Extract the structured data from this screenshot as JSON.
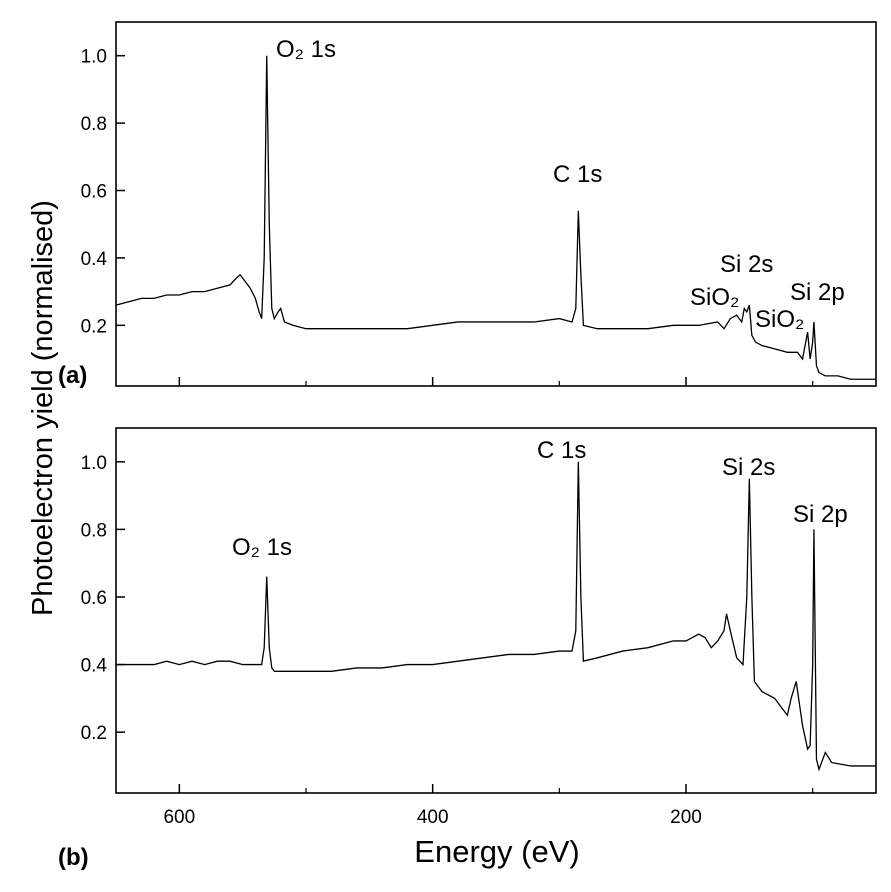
{
  "chart_data": [
    {
      "type": "line",
      "panel_label": "(a)",
      "ylabel": "Photoelectron yield (normalised)",
      "x": [
        650,
        640,
        630,
        620,
        610,
        600,
        590,
        580,
        570,
        560,
        555,
        552,
        548,
        544,
        540,
        537,
        535,
        533,
        531,
        529,
        527,
        525,
        522,
        520,
        517,
        510,
        500,
        480,
        460,
        440,
        420,
        400,
        380,
        360,
        340,
        320,
        300,
        290,
        287,
        285,
        283,
        281,
        270,
        250,
        230,
        210,
        190,
        175,
        170,
        165,
        160,
        156,
        154,
        152,
        150,
        148,
        145,
        140,
        130,
        120,
        112,
        108,
        104,
        102,
        100,
        99,
        97,
        95,
        90,
        80,
        70,
        60,
        50
      ],
      "series": [
        {
          "color": "#000000",
          "values": [
            0.26,
            0.27,
            0.28,
            0.28,
            0.29,
            0.29,
            0.3,
            0.3,
            0.31,
            0.32,
            0.34,
            0.35,
            0.33,
            0.31,
            0.28,
            0.24,
            0.22,
            0.4,
            1.0,
            0.5,
            0.25,
            0.22,
            0.24,
            0.25,
            0.21,
            0.2,
            0.19,
            0.19,
            0.19,
            0.19,
            0.19,
            0.2,
            0.21,
            0.21,
            0.21,
            0.21,
            0.22,
            0.21,
            0.25,
            0.54,
            0.35,
            0.2,
            0.19,
            0.19,
            0.19,
            0.2,
            0.2,
            0.21,
            0.19,
            0.22,
            0.23,
            0.21,
            0.25,
            0.24,
            0.26,
            0.17,
            0.15,
            0.14,
            0.13,
            0.12,
            0.12,
            0.1,
            0.18,
            0.1,
            0.15,
            0.21,
            0.08,
            0.06,
            0.05,
            0.05,
            0.04,
            0.04,
            0.04
          ]
        }
      ],
      "xlim": [
        650,
        50
      ],
      "xticks": [
        600,
        400,
        200
      ],
      "xminorticks": [
        500,
        300,
        100
      ],
      "show_xtick_labels": false,
      "ylim": [
        0.02,
        1.1
      ],
      "yticks": [
        0.2,
        0.4,
        0.6,
        0.8,
        {
          "value": 1,
          "label": "1.0"
        }
      ],
      "annotations": [
        "O₂ 1s",
        "C 1s",
        "Si 2s",
        "SiO₂",
        "SiO₂",
        "Si 2p"
      ]
    },
    {
      "type": "line",
      "panel_label": "(b)",
      "xlabel": "Energy (eV)",
      "x": [
        650,
        640,
        630,
        620,
        610,
        600,
        590,
        580,
        570,
        560,
        550,
        540,
        535,
        533,
        531,
        529,
        527,
        525,
        520,
        510,
        500,
        480,
        460,
        440,
        420,
        400,
        380,
        360,
        340,
        320,
        300,
        290,
        287,
        285,
        283,
        281,
        270,
        250,
        230,
        210,
        200,
        190,
        185,
        180,
        175,
        170,
        168,
        165,
        160,
        155,
        152,
        150,
        148,
        146,
        140,
        130,
        120,
        117,
        113,
        108,
        104,
        102,
        100,
        99,
        97,
        95,
        90,
        85,
        70,
        50
      ],
      "series": [
        {
          "color": "#000000",
          "values": [
            0.4,
            0.4,
            0.4,
            0.4,
            0.41,
            0.4,
            0.41,
            0.4,
            0.41,
            0.41,
            0.4,
            0.4,
            0.4,
            0.45,
            0.66,
            0.45,
            0.39,
            0.38,
            0.38,
            0.38,
            0.38,
            0.38,
            0.39,
            0.39,
            0.4,
            0.4,
            0.41,
            0.42,
            0.43,
            0.43,
            0.44,
            0.44,
            0.5,
            1.0,
            0.6,
            0.41,
            0.42,
            0.44,
            0.45,
            0.47,
            0.47,
            0.49,
            0.48,
            0.45,
            0.47,
            0.5,
            0.55,
            0.5,
            0.42,
            0.4,
            0.6,
            0.95,
            0.6,
            0.35,
            0.32,
            0.3,
            0.25,
            0.3,
            0.35,
            0.22,
            0.15,
            0.16,
            0.4,
            0.8,
            0.12,
            0.09,
            0.14,
            0.11,
            0.1,
            0.1
          ]
        }
      ],
      "xlim": [
        650,
        50
      ],
      "xticks": [
        600,
        400,
        200
      ],
      "xminorticks": [
        500,
        300,
        100
      ],
      "show_xtick_labels": true,
      "ylim": [
        0.02,
        1.1
      ],
      "yticks": [
        0.2,
        0.4,
        0.6,
        0.8,
        {
          "value": 1,
          "label": "1.0"
        }
      ],
      "annotations": [
        "O₂ 1s",
        "C 1s",
        "Si 2s",
        "Si 2p"
      ]
    }
  ]
}
